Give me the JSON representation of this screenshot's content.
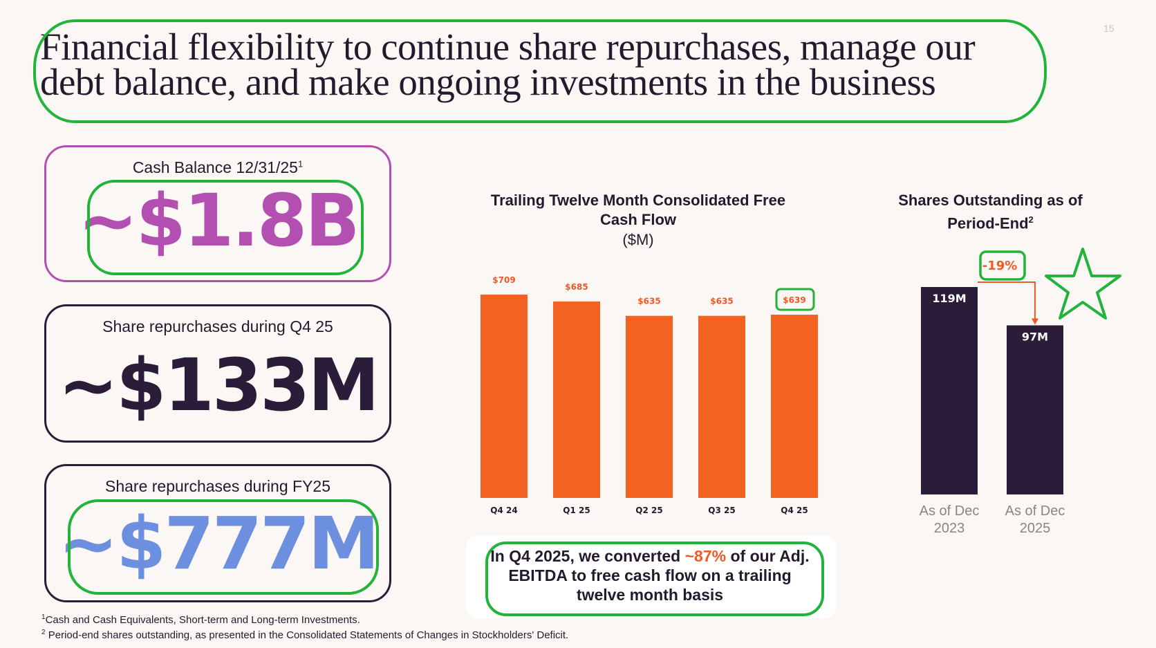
{
  "page_number": "15",
  "title": "Financial flexibility to continue share repurchases, manage our debt balance, and make ongoing investments in the business",
  "cards": [
    {
      "label": "Cash Balance 12/31/25",
      "sup": "1",
      "value": "~$1.8B",
      "color": "#b24fb0"
    },
    {
      "label": "Share repurchases during Q4 25",
      "sup": "",
      "value": "~$133M",
      "color": "#2b1d3a"
    },
    {
      "label": "Share repurchases during FY25",
      "sup": "",
      "value": "~$777M",
      "color": "#6d8fe0"
    }
  ],
  "chart_data": [
    {
      "type": "bar",
      "title": "Trailing Twelve Month Consolidated Free Cash Flow",
      "subtitle": "($M)",
      "categories": [
        "Q4 24",
        "Q1 25",
        "Q2 25",
        "Q3 25",
        "Q4 25"
      ],
      "values": [
        709,
        685,
        635,
        635,
        639
      ],
      "value_labels": [
        "$709",
        "$685",
        "$635",
        "$635",
        "$639"
      ],
      "color": "#f26322",
      "ylim": [
        0,
        709
      ]
    },
    {
      "type": "bar",
      "title": "Shares Outstanding as of Period-End",
      "title_sup": "2",
      "categories": [
        "As of Dec 2023",
        "As of Dec 2025"
      ],
      "values": [
        119,
        97
      ],
      "value_labels": [
        "119M",
        "97M"
      ],
      "change_label": "-19%",
      "color": "#2b1d3a",
      "ylim": [
        0,
        119
      ]
    }
  ],
  "note": {
    "before": "In Q4 2025, we converted ",
    "highlight": "~87%",
    "after": " of our Adj. EBITDA to free cash flow on a trailing twelve month basis"
  },
  "footnotes": [
    {
      "sup": "1",
      "text": "Cash and Cash Equivalents, Short-term and Long-term Investments."
    },
    {
      "sup": "2",
      "text": " Period-end shares outstanding, as presented in the Consolidated Statements of Changes in Stockholders' Deficit."
    }
  ],
  "colors": {
    "accent_orange": "#ef5a24",
    "annotation_green": "#22b33a",
    "dark": "#2b1d3a"
  }
}
